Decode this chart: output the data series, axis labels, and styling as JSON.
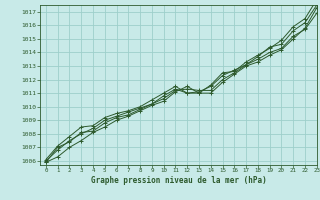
{
  "xlabel": "Graphe pression niveau de la mer (hPa)",
  "bg_color": "#c8eae8",
  "grid_color": "#9ecfcb",
  "line_color": "#2d5a2d",
  "xlim": [
    -0.5,
    23
  ],
  "ylim": [
    1005.7,
    1017.5
  ],
  "xticks": [
    0,
    1,
    2,
    3,
    4,
    5,
    6,
    7,
    8,
    9,
    10,
    11,
    12,
    13,
    14,
    15,
    16,
    17,
    18,
    19,
    20,
    21,
    22,
    23
  ],
  "yticks": [
    1006,
    1007,
    1008,
    1009,
    1010,
    1011,
    1012,
    1013,
    1014,
    1015,
    1016,
    1017
  ],
  "series": [
    [
      1005.9,
      1006.3,
      1007.0,
      1007.5,
      1008.1,
      1008.5,
      1009.0,
      1009.3,
      1009.7,
      1010.1,
      1010.4,
      1011.1,
      1011.5,
      1011.0,
      1011.0,
      1011.8,
      1012.4,
      1013.0,
      1013.3,
      1013.8,
      1014.2,
      1015.0,
      1015.8,
      1017.3
    ],
    [
      1005.9,
      1007.0,
      1007.4,
      1008.1,
      1008.2,
      1008.8,
      1009.2,
      1009.4,
      1009.8,
      1010.2,
      1010.6,
      1011.2,
      1011.3,
      1011.2,
      1011.2,
      1012.0,
      1012.5,
      1013.1,
      1013.5,
      1014.0,
      1014.3,
      1015.2,
      1015.7,
      1016.9
    ],
    [
      1006.0,
      1006.8,
      1007.5,
      1008.0,
      1008.4,
      1009.0,
      1009.3,
      1009.6,
      1009.9,
      1010.2,
      1010.8,
      1011.3,
      1011.0,
      1011.1,
      1011.5,
      1012.3,
      1012.7,
      1013.1,
      1013.7,
      1014.4,
      1014.6,
      1015.6,
      1016.2,
      1017.5
    ],
    [
      1006.1,
      1007.1,
      1007.8,
      1008.5,
      1008.6,
      1009.2,
      1009.5,
      1009.7,
      1010.0,
      1010.5,
      1011.0,
      1011.5,
      1011.0,
      1011.0,
      1011.6,
      1012.5,
      1012.6,
      1013.3,
      1013.8,
      1014.3,
      1014.9,
      1015.9,
      1016.5,
      1017.9
    ]
  ]
}
